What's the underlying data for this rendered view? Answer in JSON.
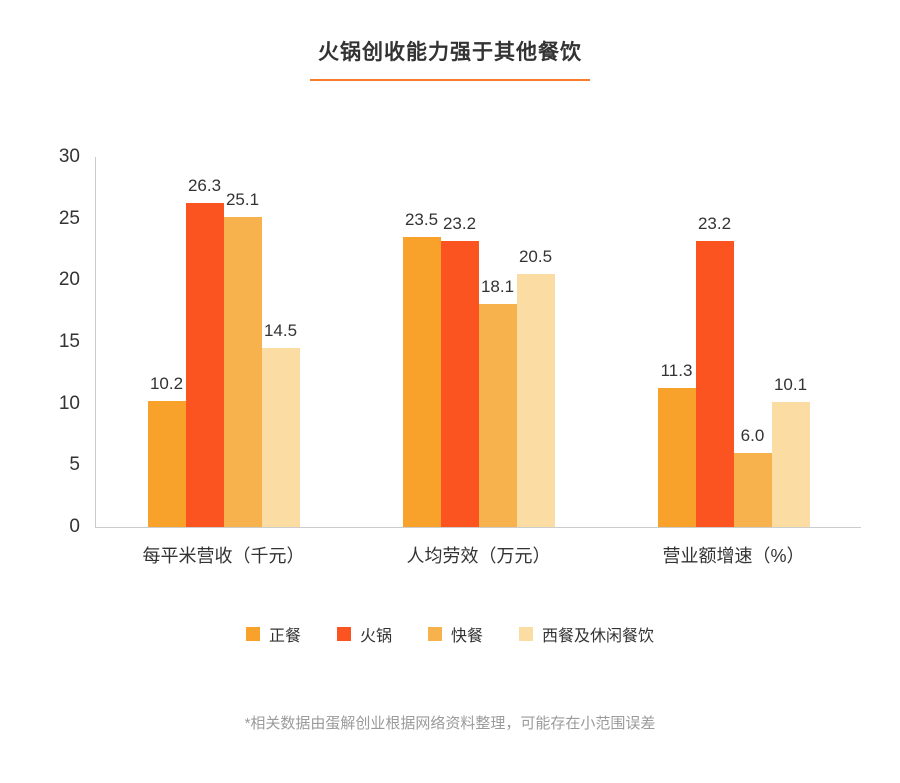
{
  "chart_data": {
    "type": "bar",
    "title": "火锅创收能力强于其他餐饮",
    "categories": [
      "每平米营收（千元）",
      "人均劳效（万元）",
      "营业额增速（%）"
    ],
    "series": [
      {
        "name": "正餐",
        "color": "#F9A22B",
        "values": [
          10.2,
          23.5,
          11.3
        ]
      },
      {
        "name": "火锅",
        "color": "#FB5420",
        "values": [
          26.3,
          23.2,
          23.2
        ]
      },
      {
        "name": "快餐",
        "color": "#F7B24D",
        "values": [
          25.1,
          18.1,
          6.0
        ]
      },
      {
        "name": "西餐及休闲餐饮",
        "color": "#FBDCA2",
        "values": [
          14.5,
          20.5,
          10.1
        ]
      }
    ],
    "ylim": [
      0,
      30
    ],
    "yticks": [
      0,
      5,
      10,
      15,
      20,
      25,
      30
    ],
    "grid": false,
    "legend_position": "bottom",
    "accent_color": "#FB7B2D",
    "footnote": "*相关数据由蛋解创业根据网络资料整理，可能存在小范围误差"
  }
}
